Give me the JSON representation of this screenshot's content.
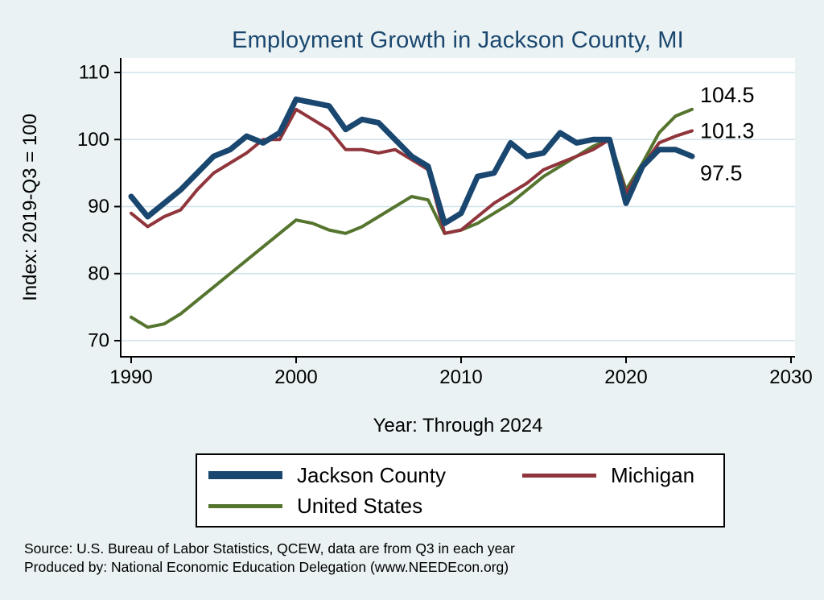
{
  "page_title": "Employment Growth in Jackson County, MI",
  "chart_data": {
    "type": "line",
    "title": "Employment Growth in Jackson County, MI",
    "xlabel": "Year: Through 2024",
    "ylabel": "Index: 2019-Q3 = 100",
    "xticks": [
      1990,
      2000,
      2010,
      2020,
      2030
    ],
    "yticks": [
      70,
      80,
      90,
      100,
      110
    ],
    "xlim": [
      1989.4,
      2030.3
    ],
    "ylim": [
      67.6,
      112.2
    ],
    "grid": true,
    "legend_position": "bottom",
    "background_color": "#eaf2f3",
    "plot_background_color": "#ffffff",
    "gridline_color": "#cfe3ec",
    "x": [
      1990,
      1991,
      1992,
      1993,
      1994,
      1995,
      1996,
      1997,
      1998,
      1999,
      2000,
      2001,
      2002,
      2003,
      2004,
      2005,
      2006,
      2007,
      2008,
      2009,
      2010,
      2011,
      2012,
      2013,
      2014,
      2015,
      2016,
      2017,
      2018,
      2019,
      2020,
      2021,
      2022,
      2023,
      2024
    ],
    "series": [
      {
        "name": "Jackson County",
        "color": "#1a476f",
        "line_width": 7,
        "values": [
          91.5,
          88.5,
          90.5,
          92.5,
          95,
          97.5,
          98.5,
          100.5,
          99.5,
          101,
          106,
          105.5,
          105,
          101.5,
          103,
          102.5,
          100,
          97.5,
          96,
          87.5,
          89,
          94.5,
          95,
          99.5,
          97.5,
          98,
          101,
          99.5,
          100,
          100,
          90.5,
          96,
          98.5,
          98.5,
          97.5
        ]
      },
      {
        "name": "Michigan",
        "color": "#90353b",
        "line_width": 4,
        "values": [
          89,
          87,
          88.5,
          89.5,
          92.5,
          95,
          96.5,
          98,
          100,
          100,
          104.5,
          103,
          101.5,
          98.5,
          98.5,
          98,
          98.5,
          97,
          95.5,
          86,
          86.5,
          88.5,
          90.5,
          92,
          93.5,
          95.5,
          96.5,
          97.5,
          98.5,
          100,
          92,
          96,
          99.5,
          100.5,
          101.3
        ]
      },
      {
        "name": "United States",
        "color": "#55752f",
        "line_width": 4,
        "values": [
          73.5,
          72,
          72.5,
          74,
          76,
          78,
          80,
          82,
          84,
          86,
          88,
          87.5,
          86.5,
          86,
          87,
          88.5,
          90,
          91.5,
          91,
          86,
          86.5,
          87.5,
          89,
          90.5,
          92.5,
          94.5,
          96,
          97.5,
          99,
          100,
          92.5,
          96.5,
          101,
          103.5,
          104.5
        ]
      }
    ],
    "end_labels": [
      {
        "text": "104.5",
        "value": 104.5,
        "offset": -18
      },
      {
        "text": "101.3",
        "value": 101.3,
        "offset": 0
      },
      {
        "text": "97.5",
        "value": 97.5,
        "offset": 21
      }
    ]
  },
  "footer": {
    "line1": "Source: U.S. Bureau of Labor Statistics, QCEW, data are from Q3 in each year",
    "line2": "Produced by: National Economic Education Delegation (www.NEEDEcon.org)"
  }
}
